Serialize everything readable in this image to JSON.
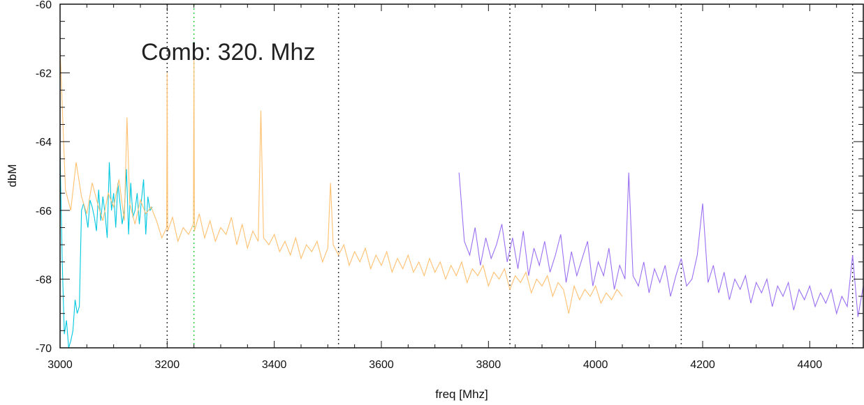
{
  "chart_data": {
    "type": "line",
    "xlabel": "freq [Mhz]",
    "ylabel": "dbM",
    "xlim": [
      3000,
      4500
    ],
    "ylim": [
      -70,
      -60
    ],
    "xticks": [
      "3000",
      "3200",
      "3400",
      "3600",
      "3800",
      "4000",
      "4200",
      "4400"
    ],
    "yticks": [
      "-70",
      "-68",
      "-66",
      "-64",
      "-62",
      "-60"
    ],
    "annotation": "Comb: 320. Mhz",
    "grid": false,
    "markers": [
      {
        "x": 3200,
        "style": "dotted",
        "color": "#333333"
      },
      {
        "x": 3250,
        "style": "dotted",
        "color": "#2ecc40"
      },
      {
        "x": 3520,
        "style": "dotted",
        "color": "#333333"
      },
      {
        "x": 3840,
        "style": "dotted",
        "color": "#333333"
      },
      {
        "x": 4160,
        "style": "dotted",
        "color": "#333333"
      },
      {
        "x": 4480,
        "style": "dotted",
        "color": "#333333"
      }
    ],
    "series": [
      {
        "color": "#00c8e0",
        "x": [
          3000,
          3004,
          3008,
          3012,
          3016,
          3020,
          3024,
          3028,
          3032,
          3036,
          3040,
          3044,
          3048,
          3052,
          3056,
          3060,
          3064,
          3068,
          3072,
          3076,
          3080,
          3084,
          3088,
          3092,
          3096,
          3100,
          3104,
          3108,
          3112,
          3116,
          3120,
          3124,
          3128,
          3132,
          3136,
          3140,
          3144,
          3148,
          3152,
          3156,
          3160,
          3164,
          3168,
          3172
        ],
        "y": [
          -64.3,
          -67.5,
          -69.6,
          -69.2,
          -70.0,
          -69.8,
          -69.5,
          -68.6,
          -69.0,
          -68.8,
          -66.0,
          -65.8,
          -66.1,
          -66.5,
          -65.7,
          -65.9,
          -66.2,
          -66.6,
          -65.4,
          -66.3,
          -65.6,
          -66.1,
          -66.8,
          -64.6,
          -66.0,
          -65.5,
          -66.5,
          -65.2,
          -65.8,
          -66.4,
          -66.0,
          -64.8,
          -66.7,
          -65.2,
          -66.2,
          -66.0,
          -65.5,
          -66.4,
          -65.7,
          -65.1,
          -66.7,
          -65.6,
          -66.0,
          -65.9
        ]
      },
      {
        "color": "#ffc070",
        "x": [
          3000,
          3010,
          3020,
          3030,
          3040,
          3050,
          3060,
          3070,
          3080,
          3090,
          3100,
          3110,
          3120,
          3125,
          3130,
          3140,
          3150,
          3160,
          3170,
          3180,
          3190,
          3199,
          3200,
          3201,
          3210,
          3220,
          3230,
          3240,
          3249,
          3250,
          3251,
          3260,
          3270,
          3280,
          3290,
          3300,
          3310,
          3320,
          3330,
          3340,
          3350,
          3360,
          3370,
          3375,
          3380,
          3390,
          3400,
          3410,
          3420,
          3430,
          3440,
          3450,
          3460,
          3470,
          3480,
          3490,
          3500,
          3505,
          3510,
          3520,
          3530,
          3540,
          3550,
          3560,
          3570,
          3580,
          3590,
          3600,
          3610,
          3620,
          3630,
          3640,
          3650,
          3660,
          3670,
          3680,
          3690,
          3700,
          3710,
          3720,
          3730,
          3740,
          3750,
          3760,
          3770,
          3780,
          3790,
          3800,
          3810,
          3820,
          3830,
          3840,
          3850,
          3860,
          3870,
          3880,
          3890,
          3900,
          3910,
          3920,
          3930,
          3940,
          3950,
          3960,
          3970,
          3980,
          3990,
          4000,
          4010,
          4020,
          4030,
          4040,
          4050
        ],
        "y": [
          -61.3,
          -65.4,
          -66.0,
          -64.6,
          -65.6,
          -66.1,
          -65.2,
          -65.8,
          -66.3,
          -65.5,
          -65.9,
          -65.1,
          -66.3,
          -63.3,
          -65.8,
          -66.4,
          -65.7,
          -66.1,
          -65.9,
          -66.3,
          -66.8,
          -66.5,
          -62.0,
          -66.6,
          -66.2,
          -66.9,
          -66.5,
          -66.7,
          -66.4,
          -61.6,
          -66.6,
          -66.1,
          -66.8,
          -66.3,
          -66.9,
          -66.5,
          -66.7,
          -66.2,
          -67.0,
          -66.4,
          -67.1,
          -66.6,
          -66.9,
          -63.1,
          -66.8,
          -67.0,
          -66.7,
          -67.2,
          -66.9,
          -67.3,
          -66.8,
          -67.4,
          -67.0,
          -67.2,
          -66.9,
          -67.5,
          -67.1,
          -65.2,
          -67.0,
          -67.3,
          -67.0,
          -67.6,
          -67.2,
          -67.5,
          -67.1,
          -67.7,
          -67.3,
          -67.6,
          -67.2,
          -67.8,
          -67.4,
          -67.7,
          -67.3,
          -67.8,
          -67.5,
          -67.9,
          -67.4,
          -67.8,
          -67.5,
          -68.0,
          -67.6,
          -67.9,
          -67.5,
          -68.1,
          -67.7,
          -67.9,
          -67.6,
          -68.2,
          -67.8,
          -68.0,
          -67.7,
          -68.3,
          -67.9,
          -68.1,
          -67.8,
          -68.4,
          -68.0,
          -68.2,
          -67.9,
          -68.5,
          -68.1,
          -68.3,
          -69.0,
          -68.2,
          -68.6,
          -68.3,
          -68.5,
          -68.2,
          -68.7,
          -68.4,
          -68.6,
          -68.3,
          -68.5
        ]
      },
      {
        "color": "#9b6ff2",
        "x": [
          3745,
          3755,
          3765,
          3775,
          3785,
          3795,
          3805,
          3815,
          3825,
          3835,
          3845,
          3855,
          3865,
          3875,
          3885,
          3895,
          3905,
          3915,
          3925,
          3935,
          3945,
          3955,
          3965,
          3975,
          3985,
          3995,
          4005,
          4015,
          4025,
          4035,
          4045,
          4055,
          4062,
          4070,
          4080,
          4090,
          4100,
          4110,
          4120,
          4130,
          4140,
          4150,
          4160,
          4170,
          4180,
          4190,
          4200,
          4210,
          4220,
          4230,
          4240,
          4250,
          4260,
          4270,
          4280,
          4290,
          4300,
          4310,
          4320,
          4330,
          4340,
          4350,
          4360,
          4370,
          4380,
          4390,
          4400,
          4410,
          4420,
          4430,
          4440,
          4450,
          4460,
          4470,
          4480,
          4490,
          4500
        ],
        "y": [
          -64.9,
          -66.9,
          -67.3,
          -66.5,
          -67.6,
          -66.8,
          -67.4,
          -67.0,
          -66.4,
          -67.5,
          -66.8,
          -67.7,
          -66.6,
          -67.9,
          -67.1,
          -67.6,
          -66.9,
          -67.8,
          -67.3,
          -66.7,
          -68.1,
          -67.2,
          -67.9,
          -67.4,
          -66.9,
          -68.2,
          -67.5,
          -67.9,
          -67.1,
          -68.3,
          -67.6,
          -68.0,
          -64.9,
          -67.9,
          -68.2,
          -67.5,
          -68.4,
          -67.7,
          -68.1,
          -67.6,
          -68.5,
          -67.9,
          -67.4,
          -68.2,
          -68.0,
          -67.3,
          -65.8,
          -68.1,
          -67.6,
          -68.4,
          -67.8,
          -68.6,
          -68.0,
          -68.3,
          -67.9,
          -68.7,
          -68.1,
          -68.4,
          -68.0,
          -68.8,
          -68.2,
          -68.5,
          -68.1,
          -68.9,
          -68.3,
          -68.6,
          -68.2,
          -68.8,
          -68.4,
          -68.7,
          -68.3,
          -69.0,
          -68.5,
          -68.8,
          -67.3,
          -69.1,
          -68.2
        ]
      }
    ]
  }
}
